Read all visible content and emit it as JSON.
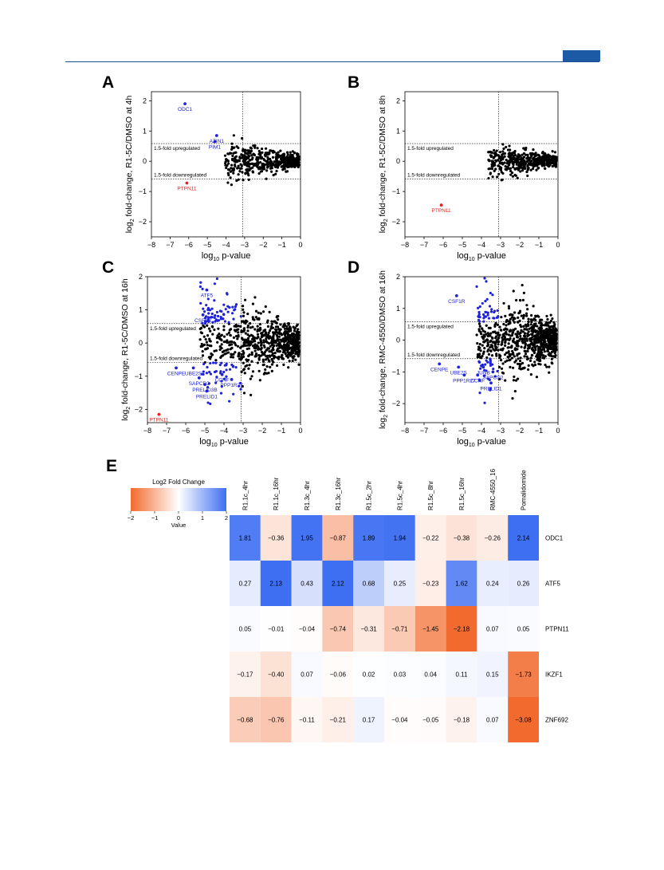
{
  "colors": {
    "black": "#000000",
    "blue": "#1f22d6",
    "red": "#e3231e",
    "header": "#1d5aa6"
  },
  "panel_labels": [
    "A",
    "B",
    "C",
    "D",
    "E"
  ],
  "chart_data": [
    {
      "type": "scatter",
      "panel": "A",
      "xlabel": "log10 p-value",
      "ylabel": "log2 fold-change, R1-5C/DMSO at 4h",
      "xlim": [
        -8,
        0
      ],
      "ylim": [
        -2.5,
        2.3
      ],
      "xticks": [
        "-8",
        "-7",
        "-6",
        "-5",
        "-4",
        "-3",
        "-2",
        "-1",
        "0"
      ],
      "yticks": [
        "2",
        "1",
        "0",
        "-1",
        "-2"
      ],
      "threshold_labels": [
        "1.5-fold upregulated",
        "1.5-fold downregulated"
      ],
      "labeled_points": [
        {
          "label": "ODC1",
          "x": -6.2,
          "y": 1.9,
          "color": "blue"
        },
        {
          "label": "AZIN1",
          "x": -4.5,
          "y": 0.85,
          "color": "blue"
        },
        {
          "label": "PIM1",
          "x": -4.6,
          "y": 0.65,
          "color": "blue"
        },
        {
          "label": "PTPN11",
          "x": -6.1,
          "y": -0.72,
          "color": "red"
        }
      ]
    },
    {
      "type": "scatter",
      "panel": "B",
      "xlabel": "log10 p-value",
      "ylabel": "log2 fold-change, R1-5C/DMSO at 8h",
      "xlim": [
        -8,
        0
      ],
      "ylim": [
        -2.5,
        2.3
      ],
      "xticks": [
        "-8",
        "-7",
        "-6",
        "-5",
        "-4",
        "-3",
        "-2",
        "-1",
        "0"
      ],
      "yticks": [
        "2",
        "1",
        "0",
        "-1",
        "-2"
      ],
      "threshold_labels": [
        "1.5-fold upregulated",
        "1.5-fold downregulated"
      ],
      "labeled_points": [
        {
          "label": "PTPN11",
          "x": -6.1,
          "y": -1.45,
          "color": "red"
        }
      ]
    },
    {
      "type": "scatter",
      "panel": "C",
      "xlabel": "log10 p-value",
      "ylabel": "log2 fold-change, R1-5C/DMSO at 16h",
      "xlim": [
        -8,
        0
      ],
      "ylim": [
        -2.4,
        2.0
      ],
      "xticks": [
        "-8",
        "-7",
        "-6",
        "-5",
        "-4",
        "-3",
        "-2",
        "-1",
        "0"
      ],
      "yticks": [
        "2",
        "1",
        "0",
        "-1",
        "-2"
      ],
      "threshold_labels": [
        "1.5-fold upregulated",
        "1.5-fold downregulated"
      ],
      "labeled_points": [
        {
          "label": "ATF5",
          "x": -4.9,
          "y": 1.6,
          "color": "blue"
        },
        {
          "label": "CSF1R",
          "x": -5.1,
          "y": 0.85,
          "color": "blue"
        },
        {
          "label": "CENPE",
          "x": -6.5,
          "y": -0.75,
          "color": "blue"
        },
        {
          "label": "UBE2S",
          "x": -5.6,
          "y": -0.75,
          "color": "blue"
        },
        {
          "label": "SAPCD2",
          "x": -5.3,
          "y": -1.05,
          "color": "blue"
        },
        {
          "label": "CCNF",
          "x": -4.1,
          "y": -0.95,
          "color": "blue"
        },
        {
          "label": "PPP1R27",
          "x": -3.6,
          "y": -1.1,
          "color": "blue"
        },
        {
          "label": "PRELID3B",
          "x": -5.0,
          "y": -1.25,
          "color": "blue"
        },
        {
          "label": "PRELID1",
          "x": -4.9,
          "y": -1.45,
          "color": "blue"
        },
        {
          "label": "PTPN11",
          "x": -7.4,
          "y": -2.15,
          "color": "red"
        }
      ]
    },
    {
      "type": "scatter",
      "panel": "D",
      "xlabel": "log10 p-value",
      "ylabel": "log2 fold-change, RMC-4550/DMSO at 16h",
      "xlim": [
        -8,
        0
      ],
      "ylim": [
        -2.6,
        2.0
      ],
      "xticks": [
        "-8",
        "-7",
        "-6",
        "-5",
        "-4",
        "-3",
        "-2",
        "-1",
        "0"
      ],
      "yticks": [
        "2",
        "1",
        "0",
        "-1",
        "-2"
      ],
      "threshold_labels": [
        "1.5-fold upregulated",
        "1.5-fold downregulated"
      ],
      "labeled_points": [
        {
          "label": "CSF1R",
          "x": -5.3,
          "y": 1.4,
          "color": "blue"
        },
        {
          "label": "CENPE",
          "x": -6.2,
          "y": -0.75,
          "color": "blue"
        },
        {
          "label": "UBE2S",
          "x": -5.2,
          "y": -0.85,
          "color": "blue"
        },
        {
          "label": "JUNB",
          "x": -3.9,
          "y": -0.85,
          "color": "blue"
        },
        {
          "label": "PPP1R27",
          "x": -4.9,
          "y": -1.1,
          "color": "blue"
        },
        {
          "label": "CCNF",
          "x": -4.2,
          "y": -1.1,
          "color": "blue"
        },
        {
          "label": "SAPCD2",
          "x": -3.4,
          "y": -1.0,
          "color": "blue"
        },
        {
          "label": "PRELID1",
          "x": -3.5,
          "y": -1.35,
          "color": "blue"
        }
      ]
    },
    {
      "type": "heatmap",
      "panel": "E",
      "legend_title": "Log2 Fold Change",
      "legend_sublabel": "Value",
      "legend_ticks": [
        "−2",
        "−1",
        "0",
        "1",
        "2"
      ],
      "scale": {
        "min": -2,
        "max": 2,
        "low_color": "#f26a2e",
        "mid_color": "#ffffff",
        "high_color": "#3e6ff2"
      },
      "columns": [
        "R1.1c_4hr",
        "R1.1c_16hr",
        "R1.3c_4hr",
        "R1.3c_16hr",
        "R1.5c_2hr",
        "R1.5c_4hr",
        "R1.5c_8hr",
        "R1.5c_16hr",
        "RMC-4550_16",
        "Pomalidomide"
      ],
      "rows": [
        "ODC1",
        "ATF5",
        "PTPN11",
        "IKZF1",
        "ZNF692"
      ],
      "values": [
        [
          1.81,
          -0.36,
          1.95,
          -0.87,
          1.89,
          1.94,
          -0.22,
          -0.38,
          -0.26,
          2.14
        ],
        [
          0.27,
          2.13,
          0.43,
          2.12,
          0.68,
          0.25,
          -0.23,
          1.62,
          0.24,
          0.26
        ],
        [
          0.05,
          -0.01,
          -0.04,
          -0.74,
          -0.31,
          -0.71,
          -1.45,
          -2.18,
          0.07,
          0.05
        ],
        [
          -0.17,
          -0.4,
          0.07,
          -0.06,
          0.02,
          0.03,
          0.04,
          0.11,
          0.15,
          -1.73
        ],
        [
          -0.68,
          -0.76,
          -0.11,
          -0.21,
          0.17,
          -0.04,
          -0.05,
          -0.18,
          0.07,
          -3.08
        ]
      ]
    }
  ]
}
